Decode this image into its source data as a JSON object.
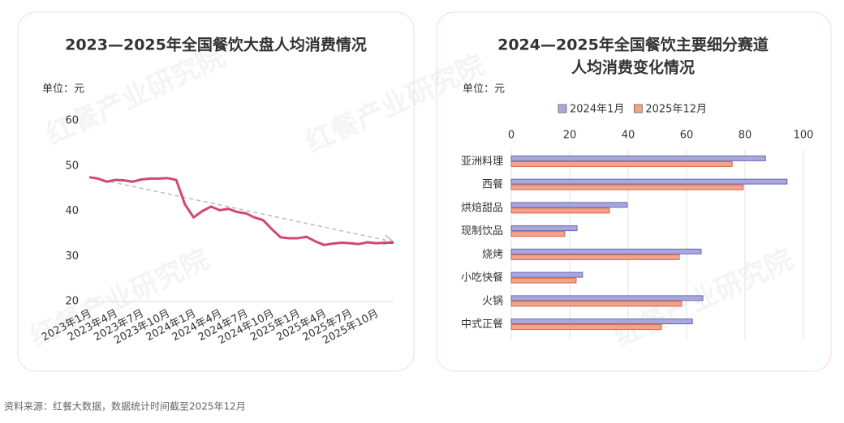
{
  "source": "资料来源：红餐大数据，数据统计时间截至2025年12月",
  "watermark": "红餐产业研究院",
  "chart_data": [
    {
      "type": "line",
      "title": "2023—2025年全国餐饮大盘人均消费情况",
      "unit": "单位：元",
      "categories": [
        "2023年1月",
        null,
        null,
        "2023年4月",
        null,
        null,
        "2023年7月",
        null,
        null,
        "2023年10月",
        null,
        null,
        "2024年1月",
        null,
        null,
        "2024年4月",
        null,
        null,
        "2024年7月",
        null,
        null,
        "2024年10月",
        null,
        null,
        "2025年1月",
        null,
        null,
        "2025年4月",
        null,
        null,
        "2025年7月",
        null,
        null,
        "2025年10月",
        null,
        null
      ],
      "series": [
        {
          "color": "#d2486e",
          "values": [
            47.5,
            47.2,
            46.5,
            46.9,
            46.8,
            46.5,
            47.0,
            47.2,
            47.2,
            47.3,
            46.9,
            41.5,
            38.6,
            40.0,
            41.0,
            40.2,
            40.5,
            39.8,
            39.5,
            38.6,
            38.0,
            36.0,
            34.2,
            34.0,
            34.0,
            34.3,
            33.3,
            32.5,
            32.8,
            33.0,
            32.9,
            32.7,
            33.1,
            32.9,
            33.0,
            33.0
          ]
        }
      ],
      "trendline": [
        47.5,
        33.2
      ],
      "trend_color": "#bbbbbb",
      "ylim": [
        20,
        60
      ],
      "yticks": [
        20,
        30,
        40,
        50,
        60
      ],
      "grid": false
    },
    {
      "type": "hbar",
      "title": [
        "2024—2025年全国餐饮主要细分赛道",
        "人均消费变化情况"
      ],
      "unit": "单位：元",
      "categories": [
        "亚洲料理",
        "西餐",
        "烘焙甜品",
        "现制饮品",
        "烧烤",
        "小吃快餐",
        "火锅",
        "中式正餐"
      ],
      "series": [
        {
          "name": "2024年1月",
          "color": "#a9a8dc",
          "values": [
            87,
            94.4,
            39.7,
            22.5,
            65,
            24.4,
            65.6,
            62
          ]
        },
        {
          "name": "2025年12月",
          "color": "#f4a38a",
          "values": [
            75.6,
            79.4,
            33.6,
            18.3,
            57.5,
            22.2,
            58.3,
            51.4
          ]
        }
      ],
      "xlim": [
        0,
        100
      ],
      "xticks": [
        0,
        20,
        40,
        60,
        80,
        100
      ],
      "grid": true,
      "legend": "top"
    }
  ]
}
